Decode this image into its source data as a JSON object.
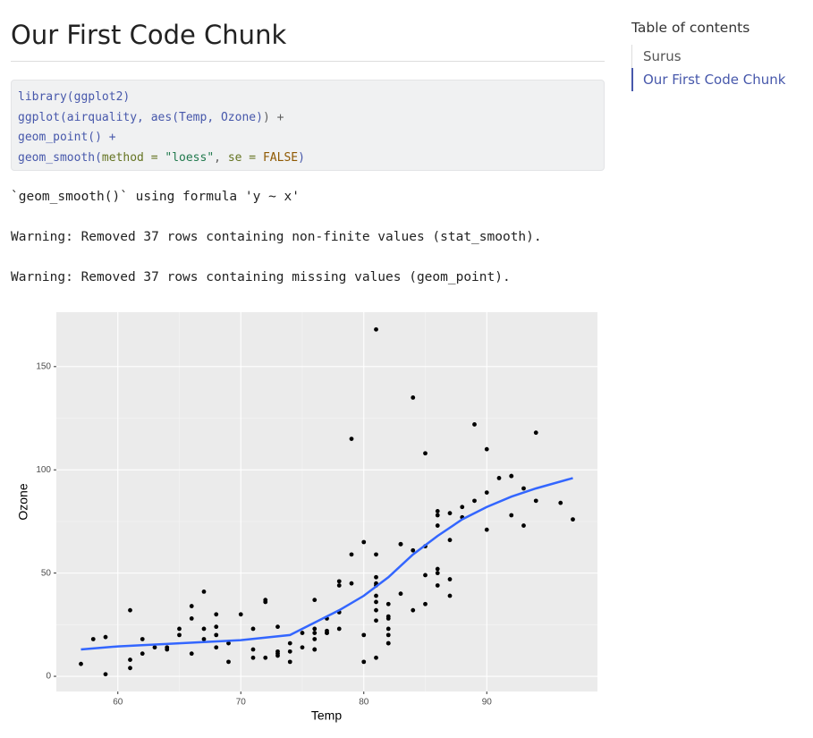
{
  "heading": "Our First Code Chunk",
  "code": {
    "lines": [
      [
        {
          "text": "library(",
          "color": "#4758ab"
        },
        {
          "text": "ggplot2",
          "color": "#4758ab"
        },
        {
          "text": ")",
          "color": "#4758ab"
        }
      ],
      [
        {
          "text": "ggplot(airquality, ",
          "color": "#4758ab"
        },
        {
          "text": "aes(Temp, Ozone)",
          "color": "#4758ab"
        },
        {
          "text": ") +",
          "color": "#5e5e5e"
        }
      ],
      [
        {
          "text": "        geom_point() +",
          "color": "#4758ab"
        }
      ],
      [
        {
          "text": "        geom_smooth(",
          "color": "#4758ab"
        },
        {
          "text": "method =",
          "color": "#657422"
        },
        {
          "text": " \"loess\"",
          "color": "#20794d"
        },
        {
          "text": ", ",
          "color": "#5e5e5e"
        },
        {
          "text": "se =",
          "color": "#657422"
        },
        {
          "text": " FALSE",
          "color": "#8f5902"
        },
        {
          "text": ")",
          "color": "#4758ab"
        }
      ]
    ]
  },
  "outputs": [
    "`geom_smooth()` using formula 'y ~ x'",
    "Warning: Removed 37 rows containing non-finite values (stat_smooth).",
    "Warning: Removed 37 rows containing missing values (geom_point)."
  ],
  "toc": {
    "title": "Table of contents",
    "items": [
      "Surus",
      "Our First Code Chunk"
    ]
  },
  "chart_data": {
    "type": "scatter",
    "x_label": "Temp",
    "y_label": "Ozone",
    "color": "#000000",
    "x": [
      67,
      72,
      74,
      62,
      66,
      65,
      59,
      61,
      74,
      69,
      66,
      68,
      58,
      64,
      66,
      57,
      68,
      62,
      59,
      73,
      61,
      61,
      67,
      81,
      79,
      76,
      82,
      90,
      87,
      82,
      77,
      72,
      65,
      73,
      76,
      84,
      85,
      81,
      83,
      83,
      88,
      92,
      92,
      89,
      73,
      81,
      80,
      81,
      82,
      84,
      87,
      85,
      74,
      86,
      85,
      82,
      86,
      88,
      86,
      83,
      81,
      81,
      81,
      82,
      86,
      85,
      87,
      89,
      90,
      90,
      86,
      82,
      80,
      77,
      79,
      76,
      78,
      78,
      77,
      72,
      79,
      81,
      86,
      97,
      94,
      96,
      94,
      91,
      92,
      93,
      93,
      87,
      84,
      80,
      78,
      75,
      73,
      81,
      76,
      77,
      71,
      71,
      78,
      67,
      76,
      68,
      82,
      64,
      71,
      81,
      69,
      63,
      70,
      75,
      76,
      68
    ],
    "y": [
      41,
      36,
      12,
      18,
      28,
      23,
      19,
      8,
      7,
      16,
      11,
      14,
      18,
      14,
      34,
      6,
      30,
      11,
      1,
      11,
      4,
      32,
      23,
      45,
      115,
      37,
      29,
      71,
      39,
      23,
      21,
      37,
      20,
      12,
      13,
      135,
      49,
      32,
      64,
      40,
      77,
      97,
      97,
      85,
      10,
      27,
      7,
      48,
      35,
      61,
      79,
      63,
      16,
      80,
      108,
      20,
      52,
      82,
      50,
      64,
      59,
      39,
      9,
      16,
      78,
      35,
      66,
      122,
      89,
      110,
      44,
      28,
      65,
      22,
      59,
      23,
      31,
      44,
      21,
      9,
      45,
      168,
      73,
      76,
      118,
      84,
      85,
      96,
      78,
      73,
      91,
      47,
      32,
      20,
      23,
      21,
      24,
      44,
      21,
      28,
      9,
      13,
      46,
      18,
      13,
      24,
      16,
      13,
      23,
      36,
      7,
      14,
      30,
      14,
      18,
      20
    ],
    "smooth": {
      "color": "#3366ff",
      "x": [
        57,
        60,
        65,
        70,
        74,
        76,
        78,
        80,
        82,
        84,
        86,
        88,
        90,
        92,
        94,
        97
      ],
      "values": [
        13,
        14.5,
        16,
        17.5,
        20,
        26,
        32,
        39,
        48,
        59,
        68,
        76,
        82,
        87,
        91,
        96
      ]
    },
    "xlim": [
      55,
      99
    ],
    "ylim": [
      -7.35,
      176.35
    ],
    "xticks": [
      60,
      70,
      80,
      90
    ],
    "yticks": [
      0,
      50,
      100,
      150
    ],
    "grid": true
  }
}
